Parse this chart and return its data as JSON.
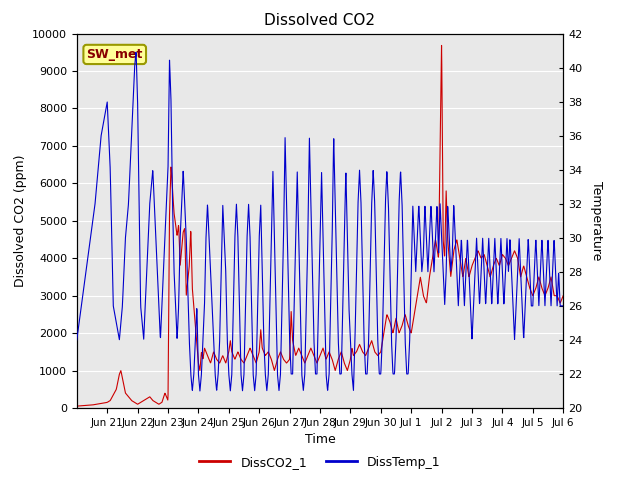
{
  "title": "Dissolved CO2",
  "xlabel": "Time",
  "ylabel_left": "Dissolved CO2 (ppm)",
  "ylabel_right": "Temperature",
  "ylim_left": [
    0,
    10000
  ],
  "ylim_right": [
    20,
    42
  ],
  "bg_color": "#e8e8e8",
  "line_color_co2": "#cc0000",
  "line_color_temp": "#0000cc",
  "legend_label_co2": "DissCO2_1",
  "legend_label_temp": "DissTemp_1",
  "box_label": "SW_met",
  "box_facecolor": "#ffff99",
  "box_edgecolor": "#999900",
  "tick_labels": [
    "Jun 21",
    "Jun 22",
    "Jun 23",
    "Jun 24",
    "Jun 25",
    "Jun 26",
    "Jun 27",
    "Jun 28",
    "Jun 29",
    "Jun 30",
    "Jul 1",
    "Jul 2",
    "Jul 3",
    "Jul 4",
    "Jul 5",
    "Jul 6"
  ],
  "tick_hours": [
    24,
    48,
    72,
    96,
    120,
    144,
    168,
    192,
    216,
    240,
    264,
    288,
    312,
    336,
    360,
    384
  ],
  "xlim": [
    0,
    384
  ]
}
